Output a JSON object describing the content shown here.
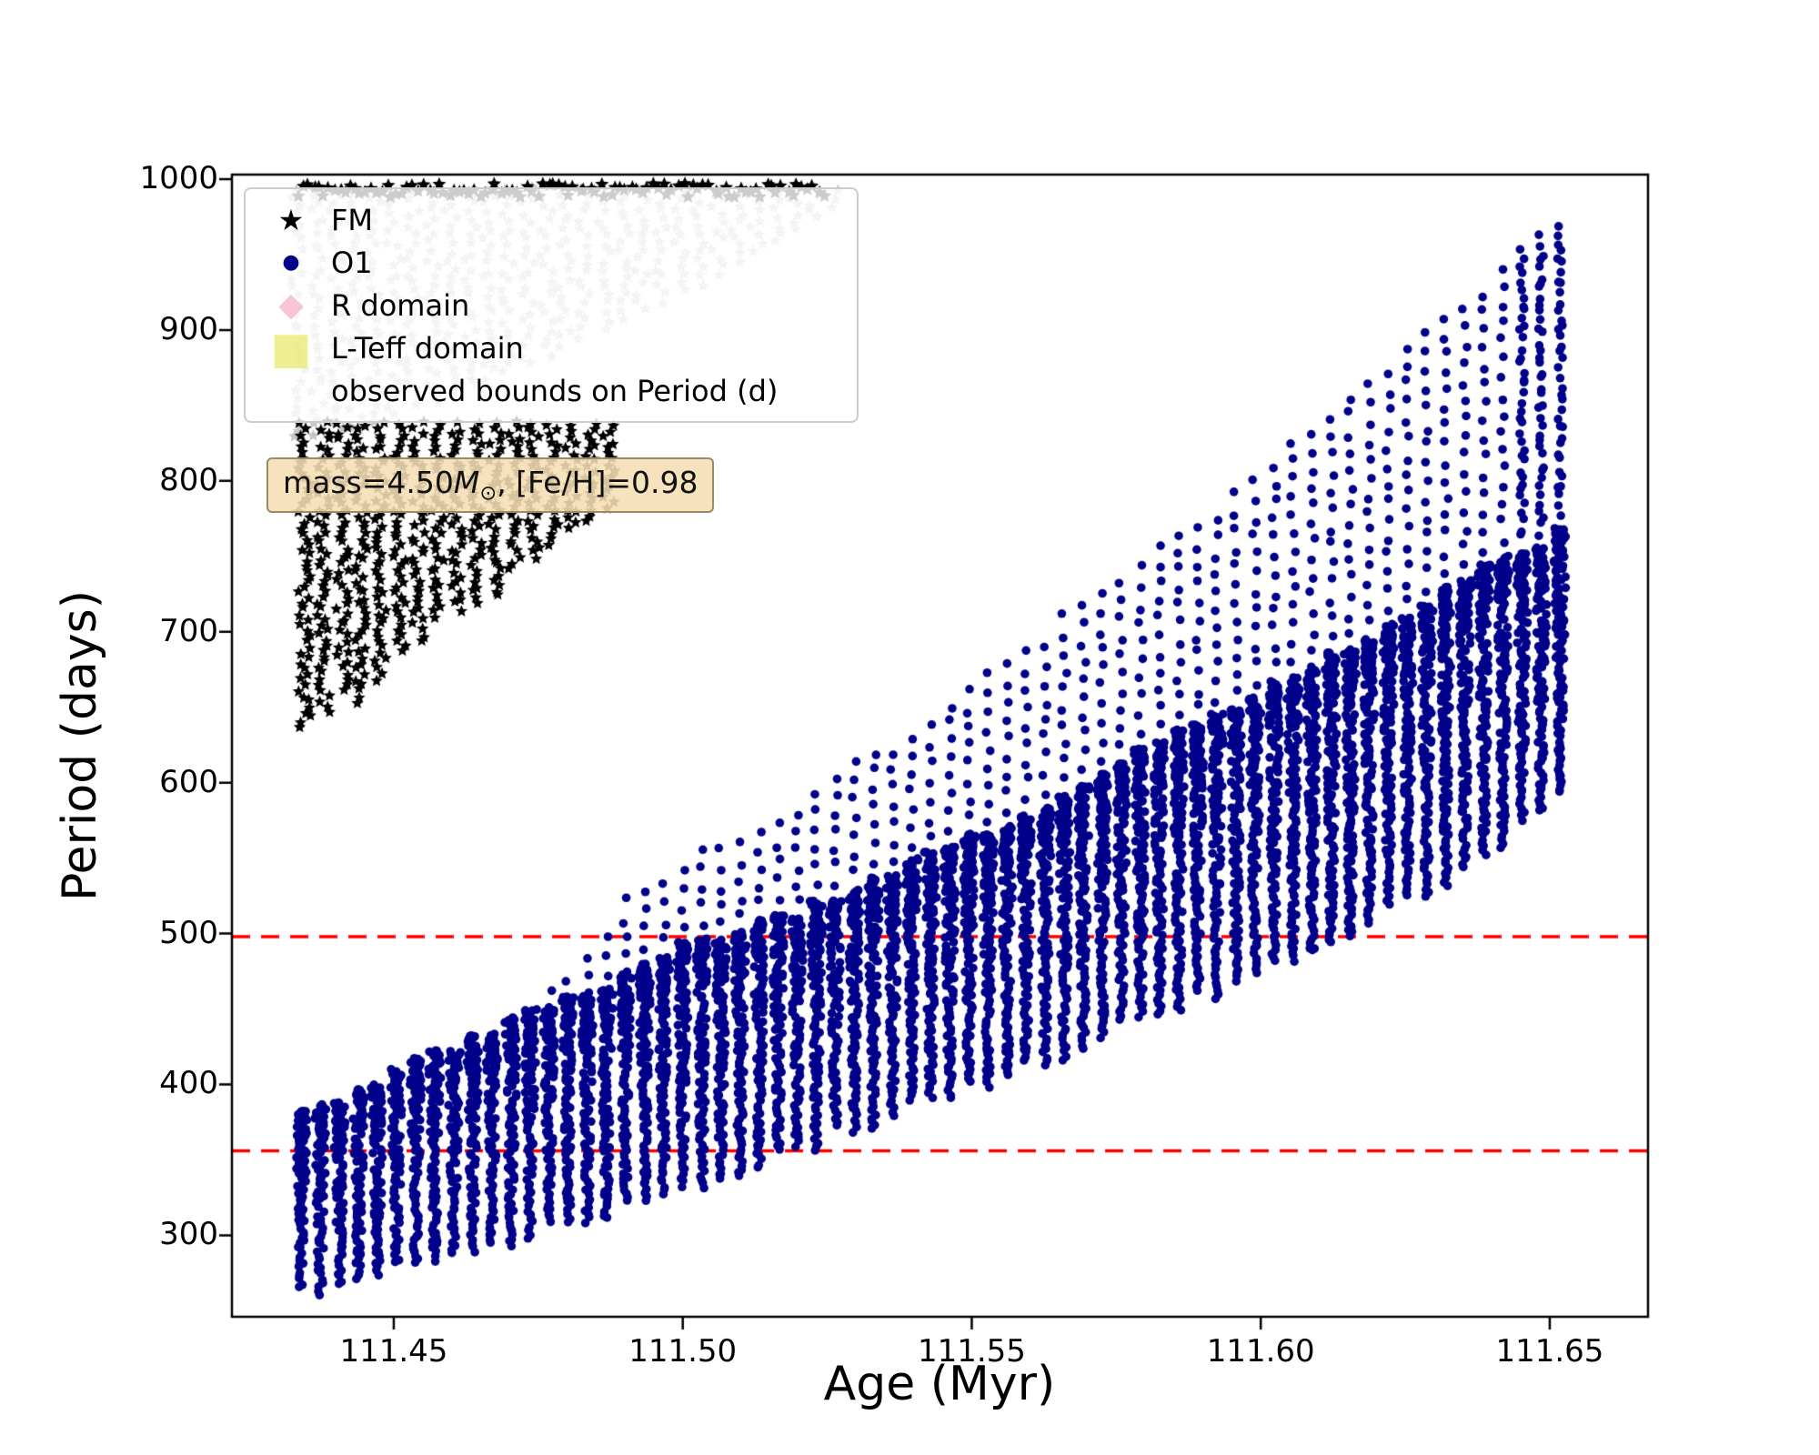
{
  "axes": {
    "xlabel": "Age (Myr)",
    "ylabel": "Period (days)",
    "xlim": [
      111.422,
      111.667
    ],
    "ylim": [
      246,
      1003
    ],
    "x_ticks": [
      {
        "value": 111.45,
        "label": "111.45"
      },
      {
        "value": 111.5,
        "label": "111.50"
      },
      {
        "value": 111.55,
        "label": "111.55"
      },
      {
        "value": 111.6,
        "label": "111.60"
      },
      {
        "value": 111.65,
        "label": "111.65"
      }
    ],
    "y_ticks": [
      {
        "value": 300,
        "label": "300"
      },
      {
        "value": 400,
        "label": "400"
      },
      {
        "value": 500,
        "label": "500"
      },
      {
        "value": 600,
        "label": "600"
      },
      {
        "value": 700,
        "label": "700"
      },
      {
        "value": 800,
        "label": "800"
      },
      {
        "value": 900,
        "label": "900"
      },
      {
        "value": 1000,
        "label": "1000"
      }
    ]
  },
  "legend": {
    "items": [
      {
        "label": "FM",
        "marker": "star",
        "glyph": "★",
        "color": "#000000"
      },
      {
        "label": "O1",
        "marker": "circle",
        "glyph": "●",
        "color": "#00008b"
      },
      {
        "label": "R domain",
        "marker": "diamond",
        "glyph": "◆",
        "color": "#f4b8c8"
      },
      {
        "label": "L-Teff domain",
        "marker": "square",
        "glyph": "■",
        "color": "#e9e96e"
      },
      {
        "label": "observed bounds on Period (d)",
        "marker": "dashed-line",
        "glyph": "",
        "color": "#ff0000"
      }
    ]
  },
  "annotation": {
    "text": "mass=4.50M⊙, [Fe/H]=0.98",
    "prefix": "mass=4.50",
    "mass_symbol": "M",
    "sub": "⊙",
    "suffix": ", [Fe/H]=0.98",
    "bg_color": "#f5deb3"
  },
  "chart_data": {
    "type": "scatter",
    "title": "",
    "xlabel": "Age (Myr)",
    "ylabel": "Period (days)",
    "xlim": [
      111.422,
      111.667
    ],
    "ylim": [
      246,
      1003
    ],
    "grid": false,
    "legend_position": "upper left",
    "hlines": {
      "label": "observed bounds on Period (d)",
      "values": [
        356,
        498
      ],
      "color": "#ff0000",
      "style": "dashed"
    },
    "series": [
      {
        "name": "FM",
        "marker": "star",
        "color": "#000000",
        "gray_color": "#c6c6c6",
        "structure": "vertical comb strips of pulsation periods, upper-left region",
        "top_row": {
          "y": [
            988,
            997
          ],
          "age_range": [
            111.4335,
            111.5245
          ]
        },
        "gray_cloud": {
          "age_range": [
            111.4335,
            111.527
          ],
          "y_top": 992,
          "lower_bound": [
            [
              111.4335,
              826
            ],
            [
              111.45,
              842
            ],
            [
              111.46,
              856
            ],
            [
              111.47,
              871
            ],
            [
              111.48,
              888
            ],
            [
              111.49,
              906
            ],
            [
              111.5,
              924
            ],
            [
              111.51,
              943
            ],
            [
              111.518,
              960
            ],
            [
              111.527,
              982
            ]
          ]
        },
        "black_strips": {
          "age_start": 111.4345,
          "age_end": 111.4905,
          "age_step": 0.0033,
          "y_top": 838,
          "bottom_envelope": [
            [
              111.4345,
              632
            ],
            [
              111.438,
              646
            ],
            [
              111.4415,
              660
            ],
            [
              111.445,
              650
            ],
            [
              111.4485,
              670
            ],
            [
              111.452,
              686
            ],
            [
              111.4555,
              698
            ],
            [
              111.459,
              710
            ],
            [
              111.4625,
              722
            ],
            [
              111.466,
              706
            ],
            [
              111.4695,
              736
            ],
            [
              111.473,
              746
            ],
            [
              111.4765,
              756
            ],
            [
              111.48,
              766
            ],
            [
              111.4835,
              774
            ],
            [
              111.487,
              780
            ],
            [
              111.4905,
              786
            ]
          ]
        }
      },
      {
        "name": "O1",
        "marker": "circle",
        "color": "#00008b",
        "structure": "vertical comb strips rising with age",
        "age_start": 111.434,
        "age_end": 111.6525,
        "age_step": 0.0033,
        "bottom_envelope": [
          [
            111.434,
            262
          ],
          [
            111.46,
            284
          ],
          [
            111.48,
            306
          ],
          [
            111.5,
            331
          ],
          [
            111.52,
            357
          ],
          [
            111.54,
            384
          ],
          [
            111.56,
            412
          ],
          [
            111.58,
            442
          ],
          [
            111.6,
            474
          ],
          [
            111.62,
            509
          ],
          [
            111.635,
            540
          ],
          [
            111.648,
            577
          ],
          [
            111.6525,
            600
          ]
        ],
        "dense_top_envelope": [
          [
            111.434,
            380
          ],
          [
            111.45,
            408
          ],
          [
            111.47,
            440
          ],
          [
            111.49,
            472
          ],
          [
            111.5,
            490
          ],
          [
            111.52,
            513
          ],
          [
            111.54,
            546
          ],
          [
            111.56,
            581
          ],
          [
            111.58,
            620
          ],
          [
            111.6,
            660
          ],
          [
            111.62,
            701
          ],
          [
            111.64,
            744
          ],
          [
            111.6525,
            765
          ]
        ],
        "top_envelope": [
          [
            111.434,
            382
          ],
          [
            111.47,
            442
          ],
          [
            111.485,
            495
          ],
          [
            111.49,
            520
          ],
          [
            111.5,
            548
          ],
          [
            111.52,
            586
          ],
          [
            111.54,
            636
          ],
          [
            111.56,
            690
          ],
          [
            111.58,
            746
          ],
          [
            111.6,
            806
          ],
          [
            111.62,
            868
          ],
          [
            111.635,
            918
          ],
          [
            111.648,
            962
          ],
          [
            111.6525,
            972
          ]
        ]
      }
    ]
  }
}
